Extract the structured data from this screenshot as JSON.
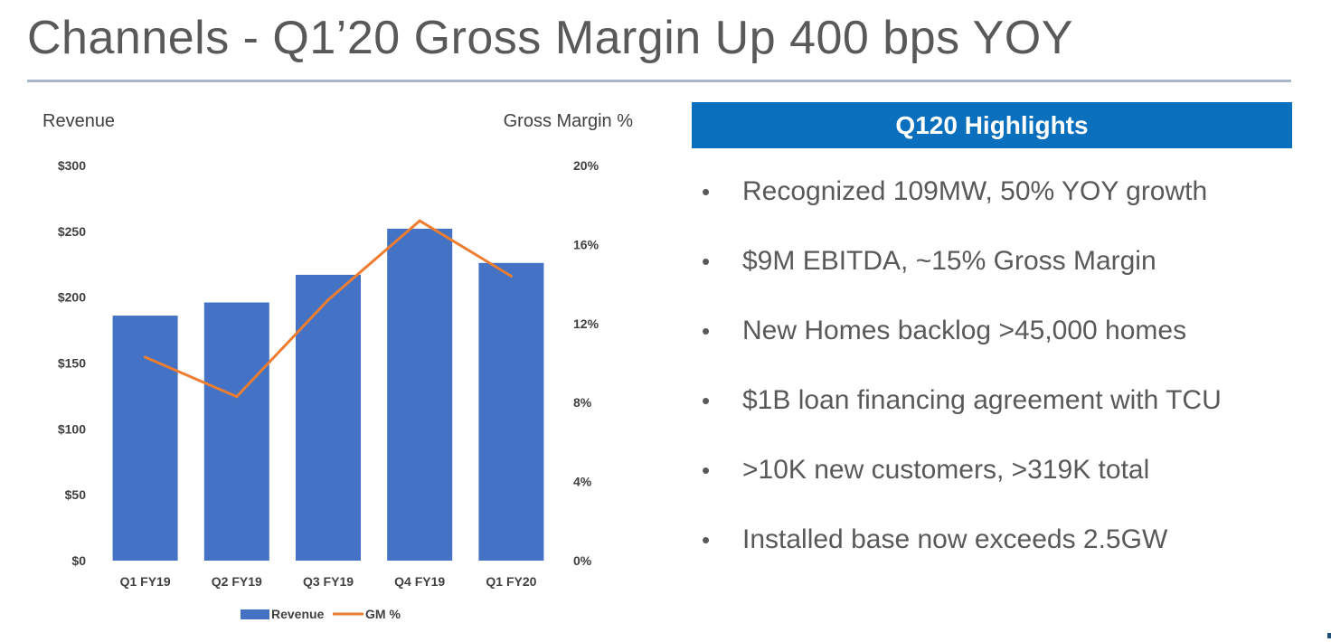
{
  "slide": {
    "title": "Channels - Q1’20 Gross Margin Up 400 bps YOY"
  },
  "highlights": {
    "header": "Q120 Highlights",
    "bullet_symbol": "•",
    "items": [
      "Recognized 109MW, 50% YOY growth",
      "$9M EBITDA, ~15% Gross Margin",
      "New Homes backlog >45,000 homes",
      "$1B loan financing agreement with TCU",
      ">10K new customers, >319K total",
      "Installed base now exceeds 2.5GW"
    ]
  },
  "chart_data": {
    "type": "bar",
    "title": "",
    "categories": [
      "Q1 FY19",
      "Q2 FY19",
      "Q3 FY19",
      "Q4 FY19",
      "Q1 FY20"
    ],
    "ylabel": "Revenue",
    "ylabel_right": "Gross Margin %",
    "ylim": [
      0,
      300
    ],
    "ylim_right": [
      0,
      20
    ],
    "y_ticks": [
      0,
      50,
      100,
      150,
      200,
      250,
      300
    ],
    "y_tick_labels": [
      "$0",
      "$50",
      "$100",
      "$150",
      "$200",
      "$250",
      "$300"
    ],
    "y2_ticks": [
      0,
      4,
      8,
      12,
      16,
      20
    ],
    "y2_tick_labels": [
      "0%",
      "4%",
      "8%",
      "12%",
      "16%",
      "20%"
    ],
    "grid": false,
    "legend_position": "bottom",
    "series": [
      {
        "name": "Revenue",
        "type": "bar",
        "axis": "left",
        "color": "#4472c4",
        "values": [
          186,
          196,
          217,
          252,
          226
        ]
      },
      {
        "name": "GM %",
        "type": "line",
        "axis": "right",
        "color": "#ed7d31",
        "values": [
          10.3,
          8.3,
          13.2,
          17.2,
          14.4
        ]
      }
    ]
  }
}
